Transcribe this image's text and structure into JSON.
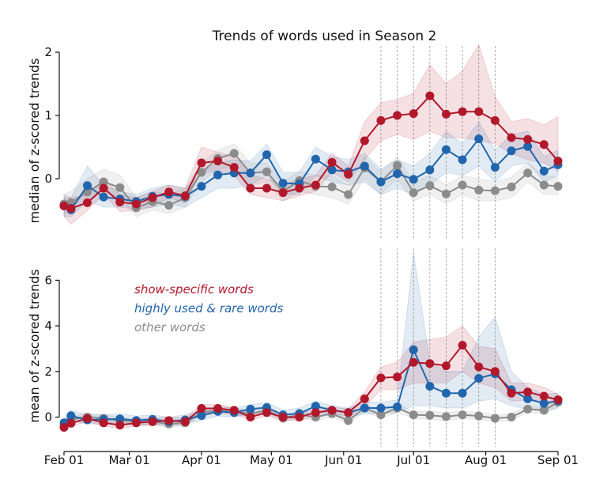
{
  "chart_data": {
    "type": "line",
    "title": "Trends of words used in Season 2",
    "colors": {
      "show": "#b2182b",
      "high": "#2166ac",
      "other": "#8c8c8c"
    },
    "xticks": [
      {
        "label": "Feb 01",
        "day": 0
      },
      {
        "label": "Mar 01",
        "day": 28
      },
      {
        "label": "Apr 01",
        "day": 59
      },
      {
        "label": "May 01",
        "day": 89
      },
      {
        "label": "Jun 01",
        "day": 120
      },
      {
        "label": "Jul 01",
        "day": 150
      },
      {
        "label": "Aug 01",
        "day": 181
      },
      {
        "label": "Sep 01",
        "day": 212
      }
    ],
    "xlim": [
      0,
      212
    ],
    "vlines": [
      136,
      143,
      150,
      157,
      164,
      171,
      178,
      185
    ],
    "x": [
      0,
      3,
      10,
      17,
      24,
      31,
      38,
      45,
      52,
      59,
      66,
      73,
      80,
      87,
      94,
      101,
      108,
      115,
      122,
      129,
      136,
      143,
      150,
      157,
      164,
      171,
      178,
      185,
      192,
      199,
      206,
      212
    ],
    "legend": [
      {
        "key": "show",
        "label": "show-specific words"
      },
      {
        "key": "high",
        "label": "highly used & rare words"
      },
      {
        "key": "other",
        "label": "other words"
      }
    ],
    "panels": [
      {
        "ylabel": "median of z-scored trends",
        "ylim": [
          -0.95,
          2.1
        ],
        "yticks": [
          0,
          1,
          2
        ],
        "series": [
          {
            "key": "show",
            "name": "show-specific words",
            "values": [
              -0.43,
              -0.47,
              -0.38,
              -0.15,
              -0.37,
              -0.4,
              -0.3,
              -0.21,
              -0.27,
              0.25,
              0.28,
              0.18,
              -0.15,
              -0.15,
              -0.22,
              -0.15,
              -0.1,
              0.26,
              0.07,
              0.6,
              0.92,
              1.0,
              1.03,
              1.31,
              1.02,
              1.06,
              1.06,
              0.92,
              0.65,
              0.62,
              0.54,
              0.28
            ],
            "lower": [
              -0.6,
              -0.72,
              -0.5,
              -0.25,
              -0.52,
              -0.5,
              -0.45,
              -0.3,
              -0.38,
              0.1,
              0.12,
              0.05,
              -0.25,
              -0.3,
              -0.35,
              -0.27,
              -0.2,
              0.1,
              -0.05,
              0.3,
              0.6,
              0.7,
              0.62,
              0.75,
              0.65,
              0.65,
              0.6,
              0.55,
              0.4,
              0.3,
              0.25,
              0.12
            ],
            "upper": [
              -0.3,
              -0.3,
              -0.25,
              0.0,
              -0.25,
              -0.3,
              -0.2,
              -0.1,
              -0.15,
              0.5,
              0.42,
              0.35,
              0.05,
              0.0,
              -0.1,
              0.0,
              0.05,
              0.4,
              0.2,
              0.9,
              1.2,
              1.25,
              1.35,
              1.8,
              1.5,
              1.7,
              2.12,
              1.3,
              0.9,
              0.95,
              0.85,
              0.98
            ]
          },
          {
            "key": "high",
            "name": "highly used & rare words",
            "values": [
              -0.43,
              -0.49,
              -0.11,
              -0.29,
              -0.32,
              -0.36,
              -0.28,
              -0.25,
              -0.28,
              -0.12,
              0.06,
              0.09,
              0.09,
              0.38,
              -0.07,
              -0.08,
              0.31,
              0.14,
              0.11,
              0.2,
              -0.05,
              0.08,
              -0.01,
              0.14,
              0.46,
              0.3,
              0.63,
              0.18,
              0.44,
              0.51,
              0.12,
              0.22
            ],
            "lower": [
              -0.6,
              -0.6,
              -0.35,
              -0.45,
              -0.45,
              -0.48,
              -0.45,
              -0.4,
              -0.45,
              -0.3,
              -0.15,
              -0.15,
              -0.1,
              0.05,
              -0.25,
              -0.25,
              0.05,
              -0.05,
              -0.1,
              -0.05,
              -0.25,
              -0.15,
              -0.25,
              -0.1,
              0.1,
              0.05,
              0.2,
              -0.05,
              0.2,
              0.25,
              -0.05,
              0.05
            ],
            "upper": [
              -0.25,
              -0.3,
              0.2,
              -0.1,
              -0.2,
              -0.25,
              -0.15,
              -0.1,
              -0.15,
              0.1,
              0.25,
              0.3,
              0.28,
              0.55,
              0.1,
              0.1,
              0.5,
              0.35,
              0.3,
              0.4,
              0.15,
              0.3,
              0.2,
              0.4,
              0.75,
              0.55,
              0.9,
              0.45,
              0.7,
              0.75,
              0.35,
              0.45
            ]
          },
          {
            "key": "other",
            "name": "other words",
            "values": [
              -0.4,
              -0.38,
              -0.21,
              -0.05,
              -0.14,
              -0.46,
              -0.36,
              -0.42,
              -0.3,
              0.1,
              0.32,
              0.4,
              0.09,
              0.11,
              -0.2,
              -0.03,
              -0.12,
              -0.13,
              -0.25,
              0.17,
              -0.05,
              0.21,
              -0.22,
              -0.11,
              -0.24,
              -0.1,
              -0.18,
              -0.19,
              -0.13,
              0.09,
              -0.1,
              -0.12
            ],
            "lower": [
              -0.55,
              -0.5,
              -0.35,
              -0.2,
              -0.3,
              -0.6,
              -0.5,
              -0.55,
              -0.45,
              -0.05,
              0.15,
              0.2,
              -0.1,
              -0.05,
              -0.35,
              -0.2,
              -0.25,
              -0.3,
              -0.4,
              0.0,
              -0.25,
              0.0,
              -0.35,
              -0.25,
              -0.4,
              -0.25,
              -0.35,
              -0.35,
              -0.3,
              -0.05,
              -0.25,
              -0.25
            ],
            "upper": [
              -0.25,
              -0.2,
              0.0,
              0.15,
              0.05,
              -0.3,
              -0.2,
              -0.25,
              -0.15,
              0.25,
              0.45,
              0.55,
              0.25,
              0.25,
              -0.05,
              0.12,
              0.05,
              0.05,
              -0.1,
              0.35,
              0.1,
              0.35,
              -0.05,
              0.05,
              -0.1,
              0.05,
              0.0,
              -0.05,
              0.02,
              0.25,
              0.05,
              0.02
            ]
          }
        ]
      },
      {
        "ylabel": "mean of z-scored trends",
        "ylim": [
          -1.3,
          7.4
        ],
        "yticks": [
          0,
          2,
          4,
          6
        ],
        "series": [
          {
            "key": "show",
            "name": "show-specific words",
            "values": [
              -0.45,
              -0.27,
              -0.06,
              -0.25,
              -0.35,
              -0.25,
              -0.2,
              -0.15,
              -0.2,
              0.38,
              0.38,
              0.3,
              0.0,
              0.2,
              0.0,
              0.0,
              0.2,
              0.3,
              0.2,
              0.8,
              1.72,
              1.76,
              2.4,
              2.35,
              2.25,
              3.15,
              2.2,
              2.0,
              1.05,
              1.1,
              0.92,
              0.76
            ],
            "lower": [
              -0.6,
              -0.4,
              -0.2,
              -0.4,
              -0.5,
              -0.4,
              -0.35,
              -0.3,
              -0.35,
              0.2,
              0.2,
              0.15,
              -0.15,
              0.05,
              -0.15,
              -0.15,
              0.05,
              0.15,
              0.05,
              0.45,
              1.2,
              1.2,
              1.5,
              1.5,
              1.5,
              2.0,
              1.5,
              1.3,
              0.7,
              0.75,
              0.6,
              0.55
            ],
            "upper": [
              -0.3,
              -0.1,
              0.1,
              -0.1,
              -0.2,
              -0.1,
              -0.05,
              0.0,
              -0.05,
              0.55,
              0.55,
              0.45,
              0.15,
              0.35,
              0.15,
              0.15,
              0.35,
              0.45,
              0.35,
              1.1,
              2.2,
              2.4,
              3.3,
              3.4,
              3.5,
              4.0,
              3.1,
              3.0,
              1.5,
              1.5,
              1.3,
              1.0
            ]
          },
          {
            "key": "high",
            "name": "highly used & rare words",
            "values": [
              -0.25,
              0.06,
              -0.12,
              -0.1,
              -0.08,
              -0.15,
              -0.1,
              -0.2,
              -0.12,
              0.07,
              0.25,
              0.2,
              0.35,
              0.42,
              0.1,
              0.16,
              0.48,
              0.3,
              0.2,
              0.4,
              0.4,
              0.45,
              2.95,
              1.35,
              1.05,
              1.05,
              1.7,
              1.9,
              1.2,
              0.8,
              0.6,
              0.72
            ],
            "lower": [
              -0.45,
              -0.15,
              -0.3,
              -0.3,
              -0.3,
              -0.35,
              -0.3,
              -0.4,
              -0.3,
              -0.15,
              0.05,
              0.0,
              0.15,
              0.2,
              -0.1,
              -0.05,
              0.25,
              0.1,
              0.0,
              0.15,
              0.15,
              0.2,
              0.5,
              0.5,
              0.4,
              0.4,
              0.7,
              0.8,
              0.5,
              0.35,
              0.25,
              0.4
            ],
            "upper": [
              -0.05,
              0.3,
              0.1,
              0.1,
              0.15,
              0.05,
              0.1,
              0.0,
              0.1,
              0.3,
              0.45,
              0.4,
              0.55,
              0.65,
              0.3,
              0.4,
              0.7,
              0.5,
              0.4,
              0.65,
              0.65,
              0.75,
              7.2,
              2.4,
              2.0,
              2.0,
              3.5,
              4.4,
              2.0,
              1.3,
              1.0,
              1.05
            ]
          },
          {
            "key": "other",
            "name": "other words",
            "values": [
              -0.35,
              -0.1,
              0.0,
              -0.05,
              -0.15,
              -0.2,
              -0.2,
              -0.3,
              -0.25,
              0.2,
              0.3,
              0.25,
              0.15,
              0.3,
              -0.05,
              0.1,
              0.0,
              0.15,
              -0.15,
              0.4,
              0.1,
              0.4,
              0.1,
              0.08,
              0.02,
              0.1,
              0.05,
              -0.05,
              0.0,
              0.35,
              0.3,
              0.65
            ],
            "lower": [
              -0.5,
              -0.25,
              -0.15,
              -0.2,
              -0.3,
              -0.35,
              -0.35,
              -0.45,
              -0.4,
              0.05,
              0.15,
              0.1,
              0.0,
              0.15,
              -0.2,
              -0.05,
              -0.15,
              0.0,
              -0.3,
              0.25,
              -0.05,
              0.2,
              -0.05,
              -0.1,
              -0.15,
              -0.05,
              -0.1,
              -0.2,
              -0.15,
              0.2,
              0.15,
              0.45
            ],
            "upper": [
              -0.2,
              0.05,
              0.15,
              0.1,
              0.0,
              -0.05,
              -0.05,
              -0.15,
              -0.1,
              0.35,
              0.45,
              0.4,
              0.3,
              0.45,
              0.1,
              0.25,
              0.15,
              0.3,
              0.0,
              0.55,
              0.25,
              0.6,
              0.25,
              0.25,
              0.2,
              0.25,
              0.2,
              0.1,
              0.15,
              0.5,
              0.45,
              0.85
            ]
          }
        ]
      }
    ]
  }
}
